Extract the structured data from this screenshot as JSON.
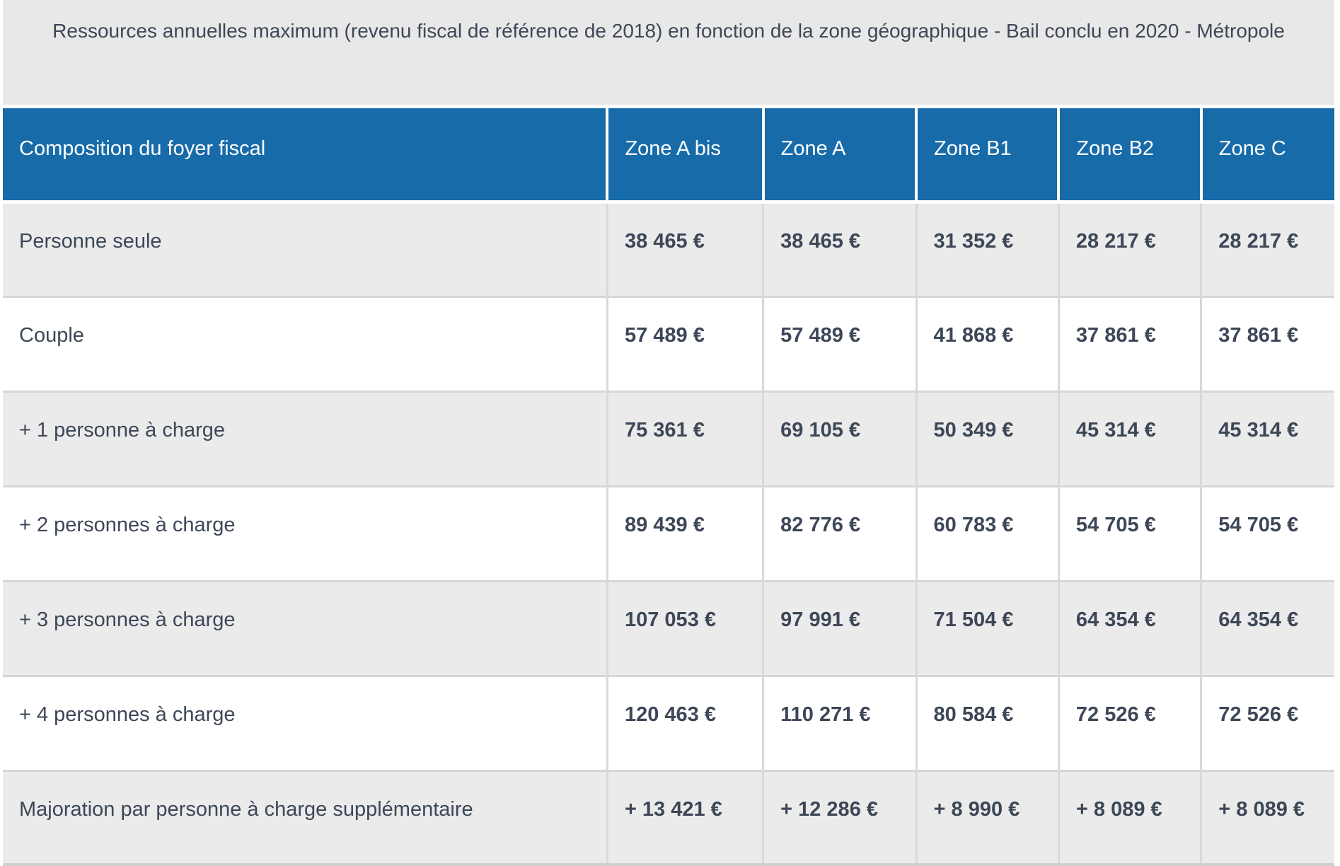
{
  "table": {
    "title": "Ressources annuelles maximum (revenu fiscal de référence de 2018) en fonction de la zone géographique - Bail conclu en 2020 - Métropole",
    "columns": [
      "Composition du foyer fiscal",
      "Zone A bis",
      "Zone A",
      "Zone B1",
      "Zone B2",
      "Zone C"
    ],
    "rows": [
      {
        "label": "Personne seule",
        "values": [
          "38 465 €",
          "38 465 €",
          "31 352 €",
          "28 217 €",
          "28 217 €"
        ]
      },
      {
        "label": "Couple",
        "values": [
          "57 489 €",
          "57 489 €",
          "41 868 €",
          "37 861 €",
          "37 861 €"
        ]
      },
      {
        "label": "+ 1 personne à charge",
        "values": [
          "75 361 €",
          "69 105 €",
          "50 349 €",
          "45 314 €",
          "45 314 €"
        ]
      },
      {
        "label": "+ 2 personnes à charge",
        "values": [
          "89 439 €",
          "82 776 €",
          "60 783 €",
          "54 705 €",
          "54 705 €"
        ]
      },
      {
        "label": "+ 3 personnes à charge",
        "values": [
          "107 053 €",
          "97 991 €",
          "71 504 €",
          "64 354 €",
          "64 354 €"
        ]
      },
      {
        "label": "+ 4 personnes à charge",
        "values": [
          "120 463 €",
          "110 271 €",
          "80 584 €",
          "72 526 €",
          "72 526 €"
        ]
      },
      {
        "label": "Majoration par personne à charge supplémentaire",
        "values": [
          "+ 13 421 €",
          "+ 12 286 €",
          "+ 8 990 €",
          "+ 8 089 €",
          "+ 8 089 €"
        ]
      }
    ],
    "colors": {
      "header_bg": "#176ba9",
      "header_text": "#ffffff",
      "title_bg": "#e8e8e8",
      "row_alt_bg": "#ebebeb",
      "row_bg": "#ffffff",
      "body_text": "#3d4757",
      "divider": "#d9d9d9",
      "bottom_border": "#cfcfcf"
    }
  }
}
